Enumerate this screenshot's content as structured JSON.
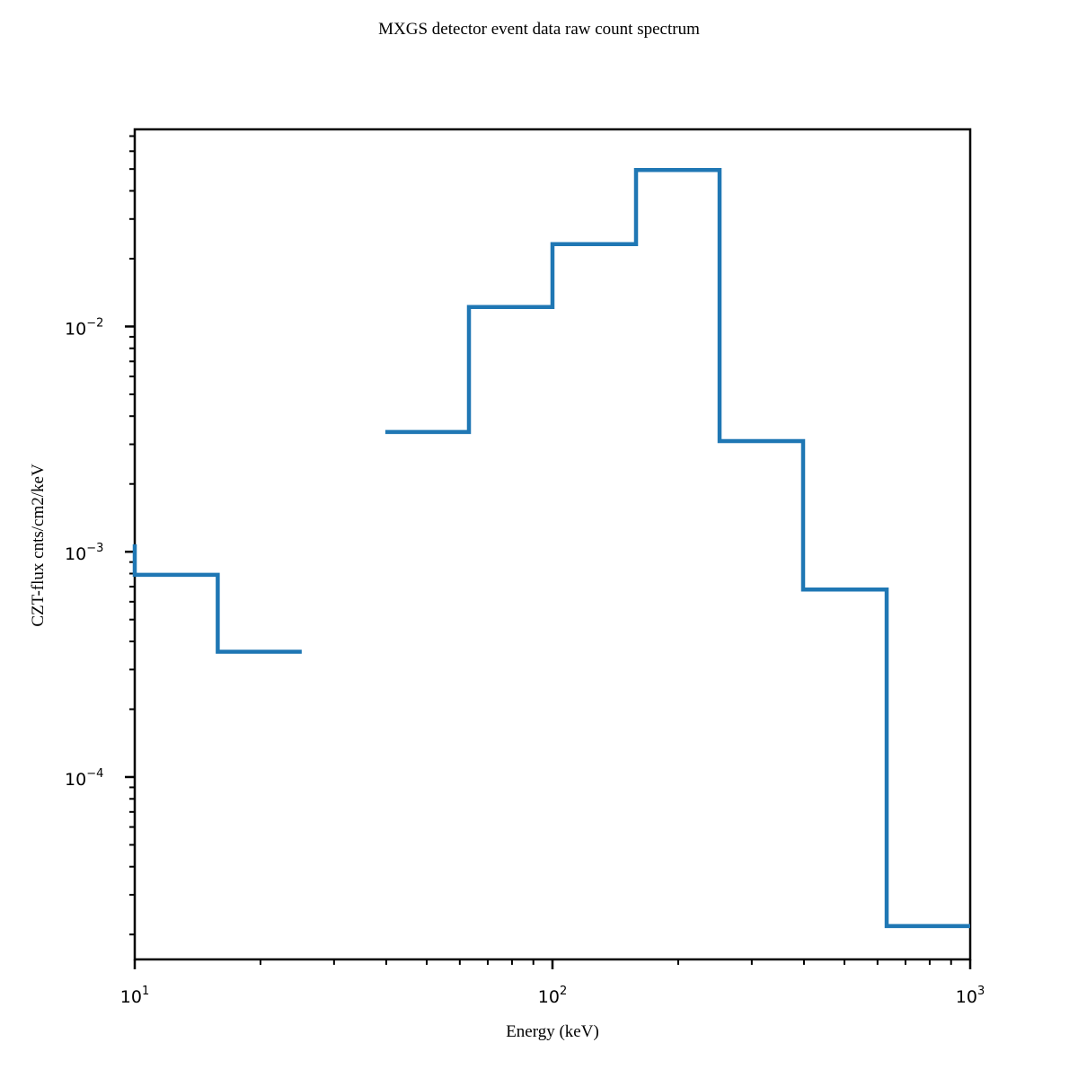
{
  "chart_data": {
    "type": "line",
    "style": "step",
    "title": "MXGS detector event data raw count spectrum",
    "xlabel": "Energy (keV)",
    "ylabel": "CZT-flux cnts/cm2/keV",
    "xscale": "log",
    "yscale": "log",
    "xlim": [
      10,
      1000
    ],
    "ylim": [
      1.55e-05,
      0.075
    ],
    "grid": false,
    "x_ticks": [
      {
        "base": "10",
        "exp": "1",
        "value": 10
      },
      {
        "base": "10",
        "exp": "2",
        "value": 100
      },
      {
        "base": "10",
        "exp": "3",
        "value": 1000
      }
    ],
    "y_ticks": [
      {
        "base": "10",
        "exp": "−4",
        "value": 0.0001
      },
      {
        "base": "10",
        "exp": "−3",
        "value": 0.001
      },
      {
        "base": "10",
        "exp": "−2",
        "value": 0.01
      }
    ],
    "series": [
      {
        "color": "#1f77b4",
        "bins": [
          {
            "x0": 10.0,
            "x1": 15.8,
            "y": 0.00079
          },
          {
            "x0": 15.8,
            "x1": 25.1,
            "y": 0.00036
          },
          {
            "x0": 25.1,
            "x1": 39.8,
            "y": null
          },
          {
            "x0": 39.8,
            "x1": 63.1,
            "y": 0.0034
          },
          {
            "x0": 63.1,
            "x1": 100.0,
            "y": 0.0122
          },
          {
            "x0": 100.0,
            "x1": 158.5,
            "y": 0.0232
          },
          {
            "x0": 158.5,
            "x1": 251.2,
            "y": 0.0495
          },
          {
            "x0": 251.2,
            "x1": 398.1,
            "y": 0.0031
          },
          {
            "x0": 398.1,
            "x1": 631.0,
            "y": 0.00068
          },
          {
            "x0": 631.0,
            "x1": 1000.0,
            "y": 2.18e-05
          }
        ]
      }
    ]
  }
}
